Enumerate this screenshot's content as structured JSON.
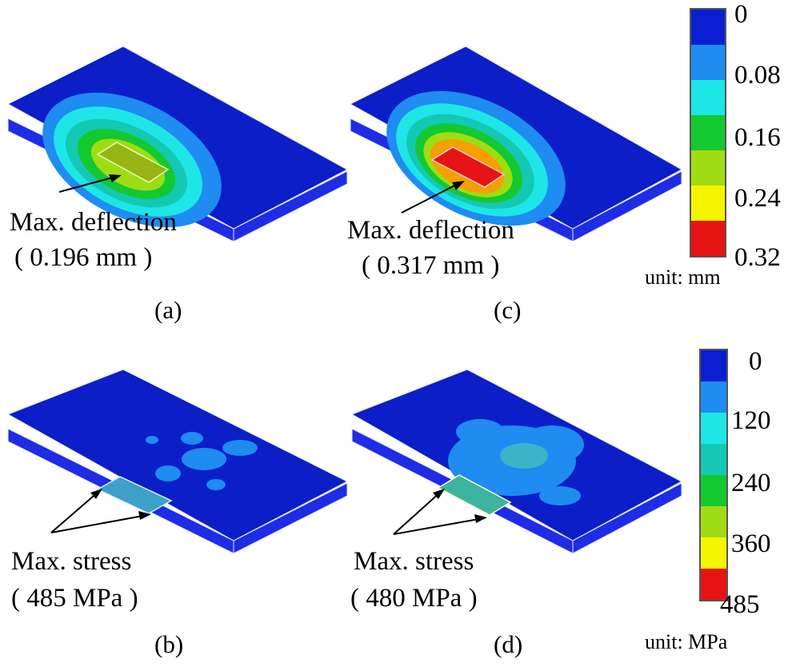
{
  "panels": {
    "a": {
      "caption": "(a)",
      "label_line1": "Max. deflection",
      "label_line2": "( 0.196 mm )"
    },
    "c": {
      "caption": "(c)",
      "label_line1": "Max. deflection",
      "label_line2": "( 0.317 mm )"
    },
    "b": {
      "caption": "(b)",
      "label_line1": "Max. stress",
      "label_line2": "( 485 MPa )"
    },
    "d": {
      "caption": "(d)",
      "label_line1": "Max. stress",
      "label_line2": "( 480 MPa )"
    }
  },
  "legend_deflection": {
    "ticks": [
      "0",
      "0.08",
      "0.16",
      "0.24",
      "0.32"
    ],
    "unit": "unit: mm",
    "colors": [
      "#0a1ed2",
      "#1e8cf0",
      "#1ee6e6",
      "#14c830",
      "#a0dc14",
      "#f5f500",
      "#e61414"
    ]
  },
  "legend_stress": {
    "ticks": [
      "0",
      "120",
      "240",
      "360",
      "485"
    ],
    "unit": "unit: MPa",
    "colors": [
      "#0a1ed2",
      "#1e8cf0",
      "#1ee6e6",
      "#14c8b4",
      "#14c830",
      "#a0dc14",
      "#f5f500",
      "#e61414"
    ]
  },
  "colors": {
    "plate": "#0c1ec8",
    "edge": "#e8e8ff",
    "side": "#1e2ce6"
  }
}
